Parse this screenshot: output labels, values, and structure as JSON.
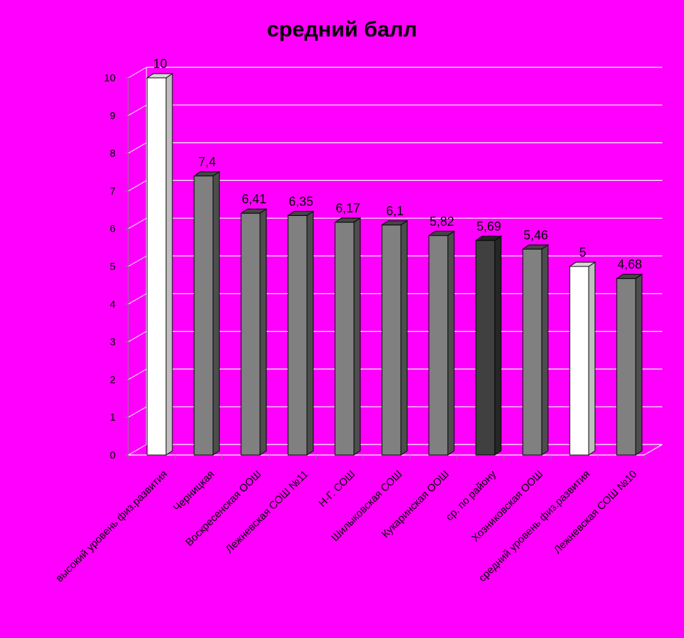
{
  "chart_data": {
    "type": "bar",
    "title": "средний балл",
    "categories": [
      "высокий уровень физ.развития",
      "Черницкая",
      "Воскресенская ООШ",
      "Лежневская СОШ №11",
      "Н-Г. СОШ",
      "Шилыковская СОШ",
      "Кукаринская ООШ",
      "ср. по району",
      "Хозниковская ООШ",
      "средний уровень физ.развития",
      "Лежневская СОШ №10"
    ],
    "values": [
      10,
      7.4,
      6.41,
      6.35,
      6.17,
      6.1,
      5.82,
      5.69,
      5.46,
      5,
      4.68
    ],
    "value_labels": [
      "10",
      "7,4",
      "6,41",
      "6,35",
      "6,17",
      "6,1",
      "5,82",
      "5,69",
      "5,46",
      "5",
      "4,68"
    ],
    "bar_colors": [
      "#ffffff",
      "#808080",
      "#808080",
      "#808080",
      "#808080",
      "#808080",
      "#808080",
      "#404040",
      "#808080",
      "#ffffff",
      "#808080"
    ],
    "ylim": [
      0,
      10
    ],
    "yticks": [
      "0",
      "1",
      "2",
      "3",
      "4",
      "5",
      "6",
      "7",
      "8",
      "9",
      "10"
    ],
    "grid": true,
    "legend": "none",
    "three_d": true
  }
}
